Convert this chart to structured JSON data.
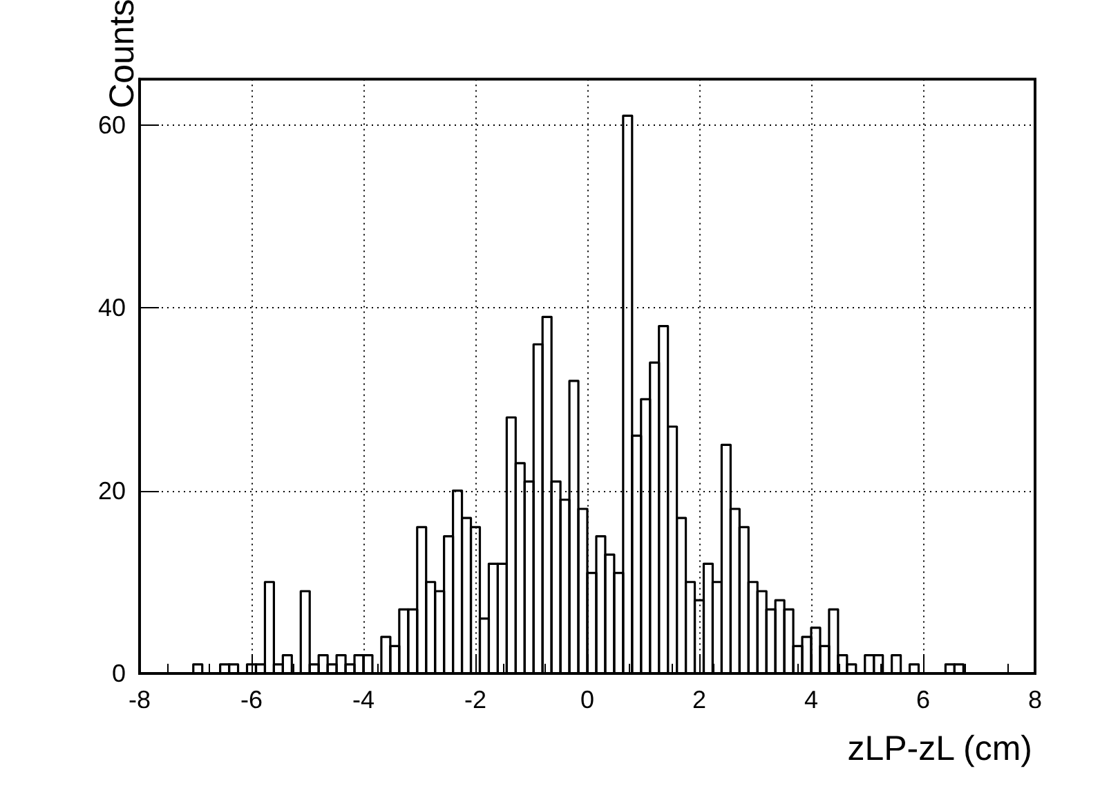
{
  "chart_data": {
    "type": "histogram",
    "xlabel": "zLP-zL (cm)",
    "ylabel": "Counts",
    "color": "#000000",
    "bins": [
      -8,
      -7.84,
      -7.68,
      -7.52,
      -7.36,
      -7.2,
      -7.04,
      -6.88,
      -6.72,
      -6.56,
      -6.4,
      -6.24,
      -6.08,
      -5.92,
      -5.76,
      -5.6,
      -5.44,
      -5.28,
      -5.12,
      -4.96,
      -4.8,
      -4.64,
      -4.48,
      -4.32,
      -4.16,
      -4,
      -3.84,
      -3.68,
      -3.52,
      -3.36,
      -3.2,
      -3.04,
      -2.88,
      -2.72,
      -2.56,
      -2.4,
      -2.24,
      -2.08,
      -1.92,
      -1.76,
      -1.6,
      -1.44,
      -1.28,
      -1.12,
      -0.96,
      -0.8,
      -0.64,
      -0.48,
      -0.32,
      -0.16,
      0,
      0.16,
      0.32,
      0.48,
      0.64,
      0.8,
      0.96,
      1.12,
      1.28,
      1.44,
      1.6,
      1.76,
      1.92,
      2.08,
      2.24,
      2.4,
      2.56,
      2.72,
      2.88,
      3.04,
      3.2,
      3.36,
      3.52,
      3.68,
      3.84,
      4,
      4.16,
      4.32,
      4.48,
      4.64,
      4.8,
      4.96,
      5.12,
      5.28,
      5.44,
      5.6,
      5.76,
      5.92,
      6.08,
      6.24,
      6.4,
      6.56,
      6.72,
      6.88,
      7.04,
      7.2,
      7.36,
      7.52,
      7.68,
      7.84,
      8
    ],
    "values": [
      0,
      0,
      0,
      0,
      0,
      0,
      1,
      0,
      0,
      1,
      1,
      0,
      1,
      1,
      10,
      1,
      2,
      0,
      9,
      1,
      2,
      1,
      2,
      1,
      2,
      2,
      0,
      4,
      3,
      7,
      7,
      16,
      10,
      9,
      15,
      20,
      17,
      16,
      6,
      12,
      12,
      28,
      23,
      21,
      36,
      39,
      21,
      19,
      32,
      18,
      11,
      15,
      13,
      11,
      61,
      26,
      30,
      34,
      38,
      27,
      17,
      10,
      8,
      12,
      10,
      25,
      18,
      16,
      10,
      9,
      7,
      8,
      7,
      3,
      4,
      5,
      3,
      7,
      2,
      1,
      0,
      2,
      2,
      0,
      2,
      0,
      1,
      0,
      0,
      0,
      1,
      1,
      0,
      0,
      0,
      0,
      0,
      0,
      0,
      0
    ],
    "xlim": [
      -8,
      8
    ],
    "xticks": [
      -8,
      -6,
      -4,
      -2,
      0,
      2,
      4,
      6,
      8
    ],
    "ylim": [
      0,
      65
    ],
    "yticks": [
      0,
      20,
      40,
      60
    ],
    "grid": true
  }
}
